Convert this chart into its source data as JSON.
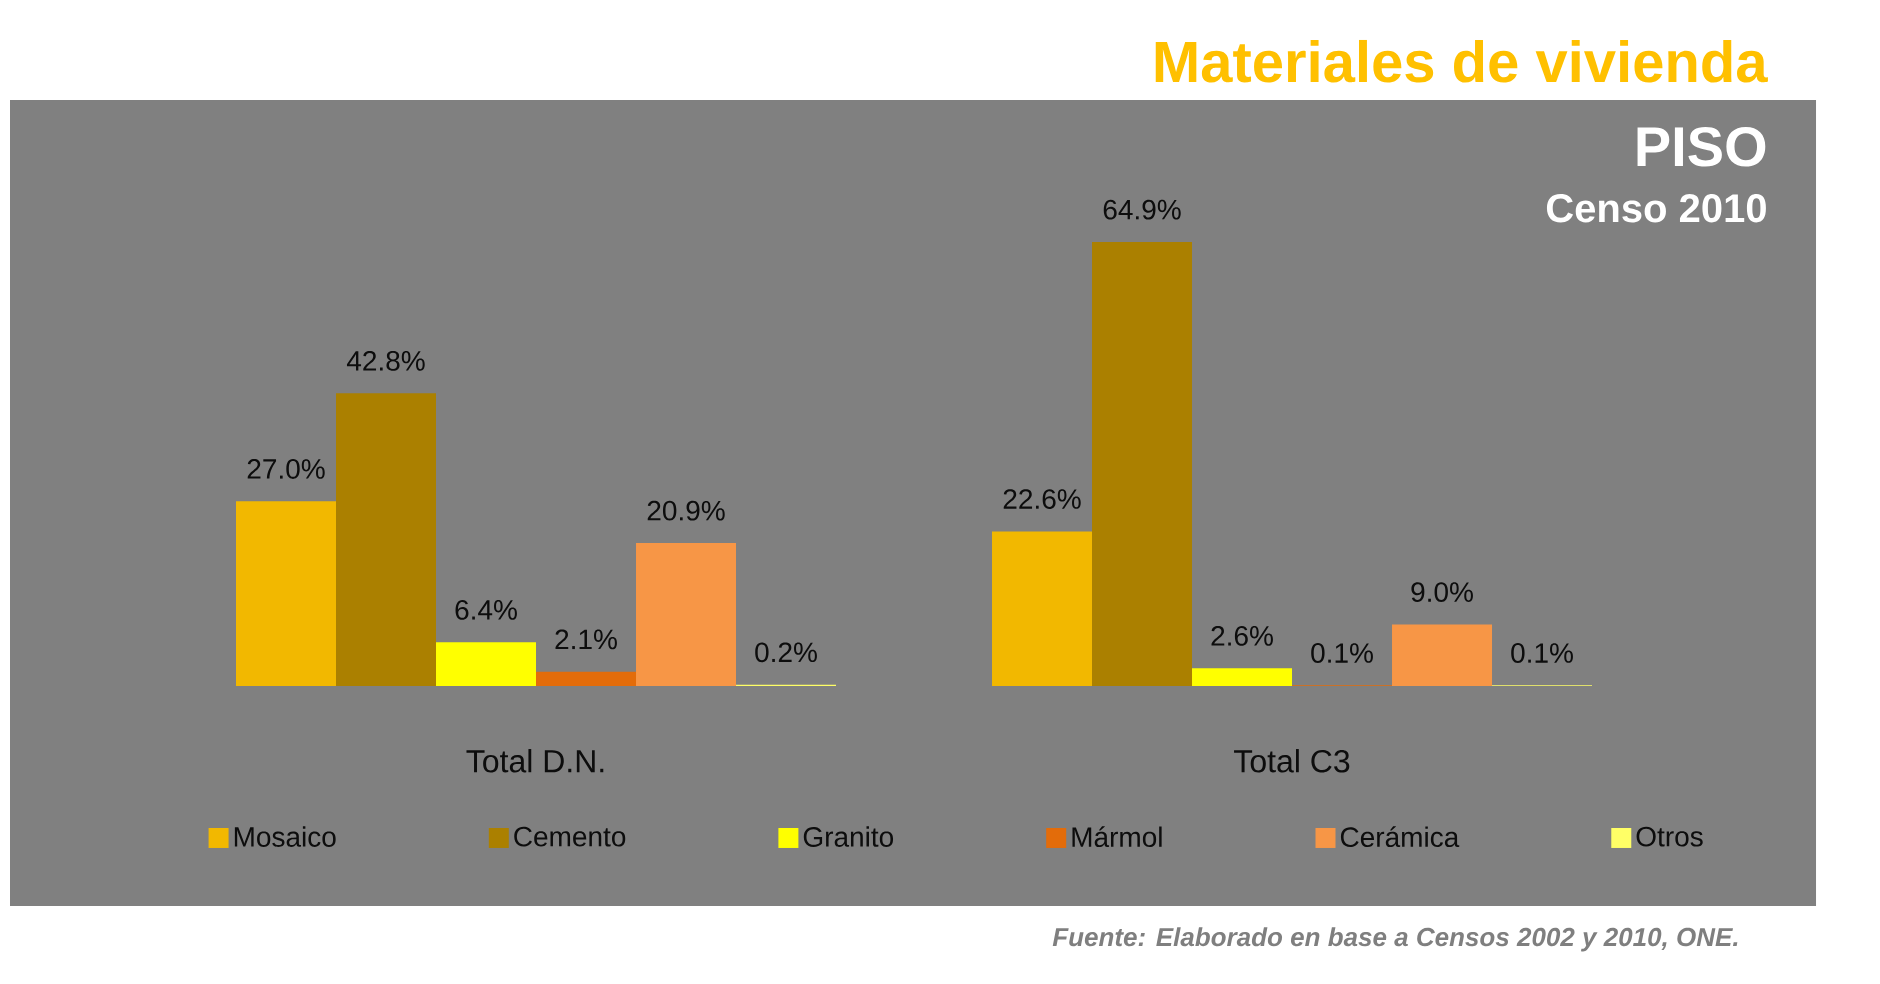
{
  "chart_data": {
    "type": "bar",
    "title": "Materiales de vivienda",
    "subtitle": "PISO",
    "annotations": [
      "Censo 2010",
      "Fuente: Elaborado en base a Censos 2002 y 2010, ONE."
    ],
    "categories": [
      "Total D.N.",
      "Total C3"
    ],
    "series": [
      {
        "name": "Mosaico",
        "color": "#f2b800",
        "values": [
          27.0,
          22.6
        ],
        "value_labels": [
          "27.0%",
          "22.6%"
        ]
      },
      {
        "name": "Cemento",
        "color": "#ab8000",
        "values": [
          42.8,
          64.9
        ],
        "value_labels": [
          "42.8%",
          "64.9%"
        ]
      },
      {
        "name": "Granito",
        "color": "#ffff00",
        "values": [
          6.4,
          2.6
        ],
        "value_labels": [
          "6.4%",
          "2.6%"
        ]
      },
      {
        "name": "Mármol",
        "color": "#e36c0a",
        "values": [
          2.1,
          0.1
        ],
        "value_labels": [
          "2.1%",
          "0.1%"
        ]
      },
      {
        "name": "Cerámica",
        "color": "#f79646",
        "values": [
          20.9,
          9.0
        ],
        "value_labels": [
          "20.9%",
          "9.0%"
        ]
      },
      {
        "name": "Otros",
        "color": "#ffff66",
        "values": [
          0.2,
          0.1
        ],
        "value_labels": [
          "0.2%",
          "0.1%"
        ]
      }
    ],
    "legend": "bottom",
    "tick_labels": "x"
  }
}
